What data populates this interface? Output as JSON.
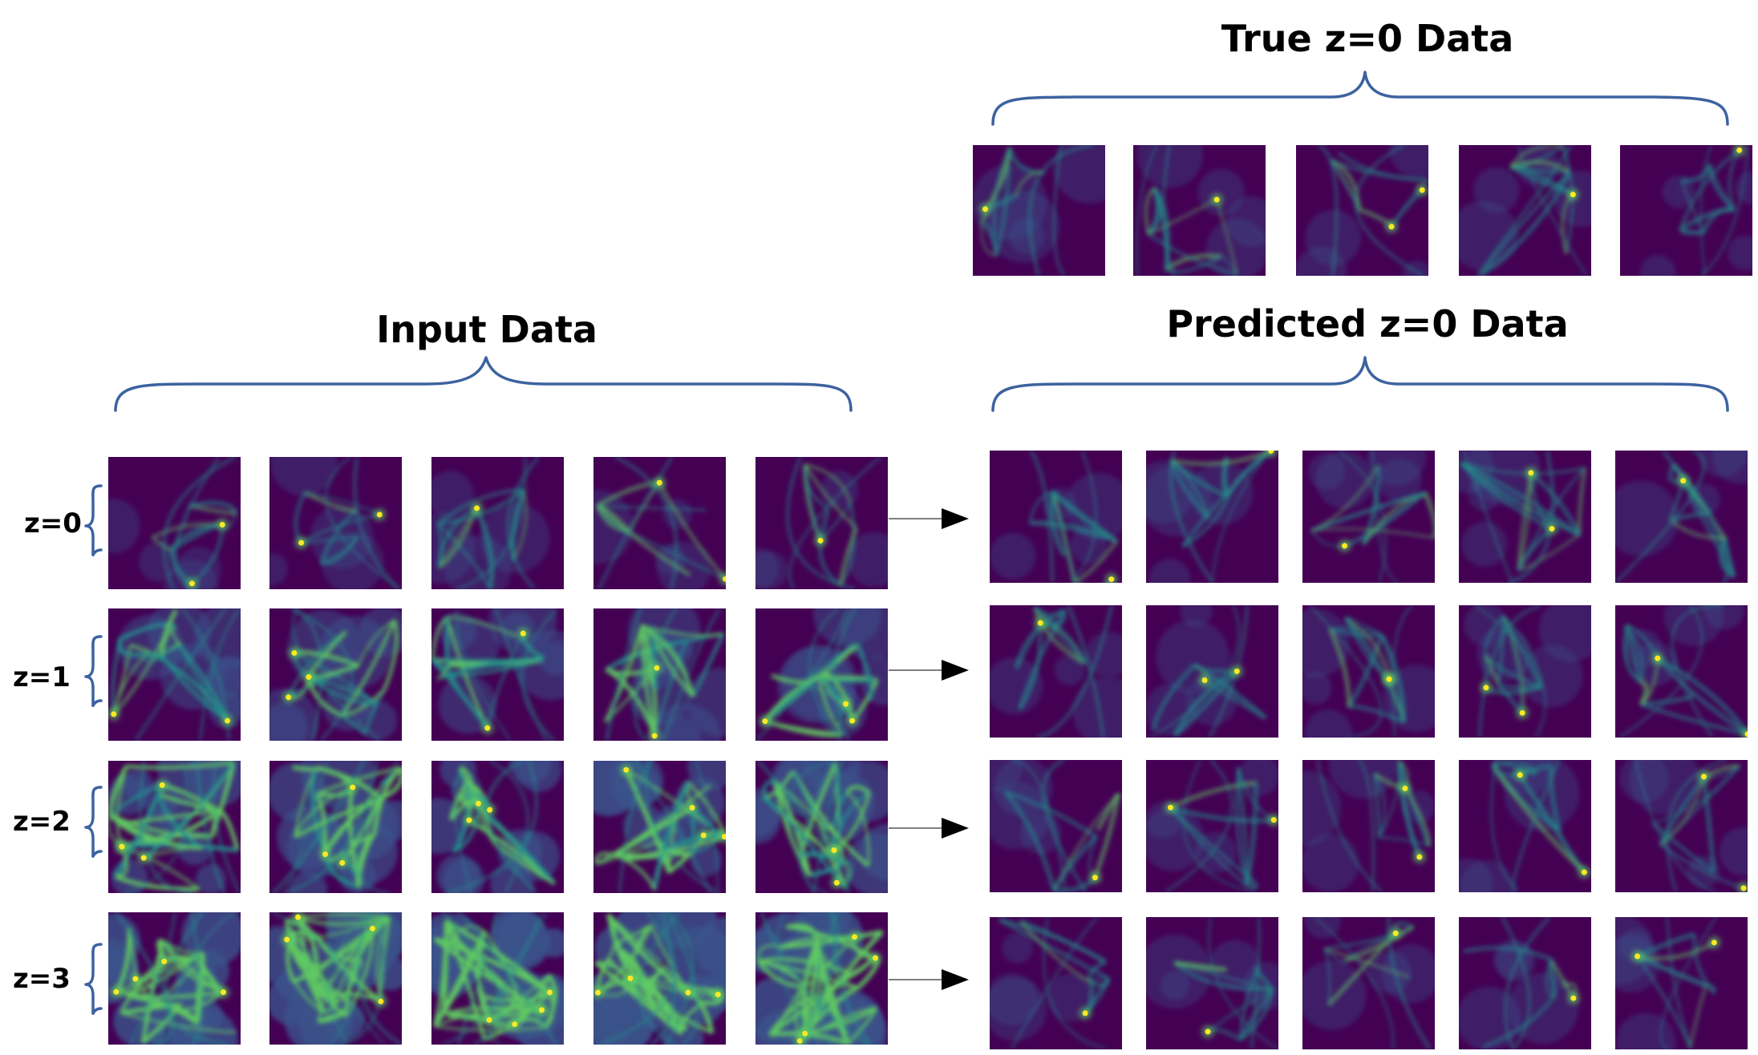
{
  "titles": {
    "true_z0": "True z=0 Data",
    "input": "Input Data",
    "predicted": "Predicted z=0 Data"
  },
  "row_labels": [
    "z=0",
    "z=1",
    "z=2",
    "z=3"
  ],
  "colors": {
    "brace": "#3c62a0",
    "colormap": [
      "#440154",
      "#3b528b",
      "#21918c",
      "#5ec962",
      "#fde725"
    ]
  },
  "panels": {
    "true_tiles": 5,
    "input_rows": 4,
    "input_cols": 5,
    "predicted_rows": 4,
    "predicted_cols": 5
  },
  "icons": {
    "arrow": "right-arrow-icon",
    "brace": "curly-brace-icon"
  }
}
